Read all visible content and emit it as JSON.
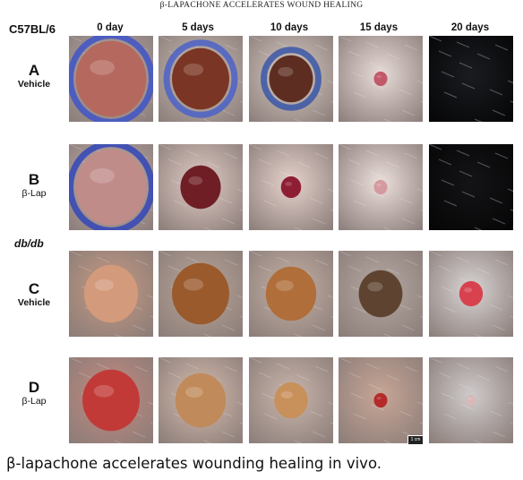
{
  "figure": {
    "title": "β-LAPACHONE ACCELERATES WOUND HEALING",
    "strain_top": "C57BL/6",
    "strain_bottom": "db/db",
    "columns": [
      "0 day",
      "5 days",
      "10 days",
      "15 days",
      "20 days"
    ],
    "rows": [
      {
        "letter": "A",
        "label": "Vehicle"
      },
      {
        "letter": "B",
        "label": "β-Lap"
      },
      {
        "letter": "C",
        "label": "Vehicle"
      },
      {
        "letter": "D",
        "label": "β-Lap"
      }
    ],
    "scale_bar": "1 cm",
    "caption": "β-lapachone accelerates wounding healing in vivo."
  },
  "panels": [
    {
      "row": 0,
      "col": 0,
      "skin": "#b9aeb0",
      "wound": "#b5685e",
      "ring": "#3f55c8",
      "size": 0.42,
      "dark": false
    },
    {
      "row": 0,
      "col": 1,
      "skin": "#cbbfb8",
      "wound": "#7a3524",
      "ring": "#4b62c8",
      "size": 0.34,
      "dark": false
    },
    {
      "row": 0,
      "col": 2,
      "skin": "#d8ccc6",
      "wound": "#5e2d22",
      "ring": "#3a57a8",
      "size": 0.26,
      "dark": false
    },
    {
      "row": 0,
      "col": 3,
      "skin": "#e8dcd8",
      "wound": "#c2596a",
      "ring": "",
      "size": 0.08,
      "dark": false
    },
    {
      "row": 0,
      "col": 4,
      "skin": "#1a1c20",
      "wound": "",
      "ring": "",
      "size": 0,
      "dark": true
    },
    {
      "row": 1,
      "col": 0,
      "skin": "#c8b4b6",
      "wound": "#c08c8a",
      "ring": "#3247b8",
      "size": 0.42,
      "dark": false
    },
    {
      "row": 1,
      "col": 1,
      "skin": "#e2ccc6",
      "wound": "#6e1e24",
      "ring": "",
      "size": 0.24,
      "dark": false
    },
    {
      "row": 1,
      "col": 2,
      "skin": "#e6d2cc",
      "wound": "#8e1e34",
      "ring": "",
      "size": 0.12,
      "dark": false
    },
    {
      "row": 1,
      "col": 3,
      "skin": "#ece0dc",
      "wound": "#d49aa0",
      "ring": "",
      "size": 0.08,
      "dark": false
    },
    {
      "row": 1,
      "col": 4,
      "skin": "#141416",
      "wound": "",
      "ring": "",
      "size": 0,
      "dark": true
    },
    {
      "row": 2,
      "col": 0,
      "skin": "#c69a82",
      "wound": "#d49a7c",
      "ring": "",
      "size": 0.32,
      "dark": false
    },
    {
      "row": 2,
      "col": 1,
      "skin": "#b9a698",
      "wound": "#9a5a2c",
      "ring": "",
      "size": 0.34,
      "dark": false
    },
    {
      "row": 2,
      "col": 2,
      "skin": "#c6b2a6",
      "wound": "#b06e3a",
      "ring": "",
      "size": 0.3,
      "dark": false
    },
    {
      "row": 2,
      "col": 3,
      "skin": "#b6aaa4",
      "wound": "#5e4430",
      "ring": "",
      "size": 0.26,
      "dark": false
    },
    {
      "row": 2,
      "col": 4,
      "skin": "#d8d4d4",
      "wound": "#d8424e",
      "ring": "",
      "size": 0.14,
      "dark": false
    },
    {
      "row": 3,
      "col": 0,
      "skin": "#c68a80",
      "wound": "#c23a38",
      "ring": "",
      "size": 0.34,
      "dark": false
    },
    {
      "row": 3,
      "col": 1,
      "skin": "#d6bcae",
      "wound": "#c08a5a",
      "ring": "",
      "size": 0.3,
      "dark": false
    },
    {
      "row": 3,
      "col": 2,
      "skin": "#cab6ac",
      "wound": "#c8905a",
      "ring": "",
      "size": 0.2,
      "dark": false
    },
    {
      "row": 3,
      "col": 3,
      "skin": "#c8a696",
      "wound": "#b42a2a",
      "ring": "",
      "size": 0.08,
      "dark": false
    },
    {
      "row": 3,
      "col": 4,
      "skin": "#cfcbcb",
      "wound": "#d8b8b8",
      "ring": "",
      "size": 0.06,
      "dark": false
    }
  ]
}
